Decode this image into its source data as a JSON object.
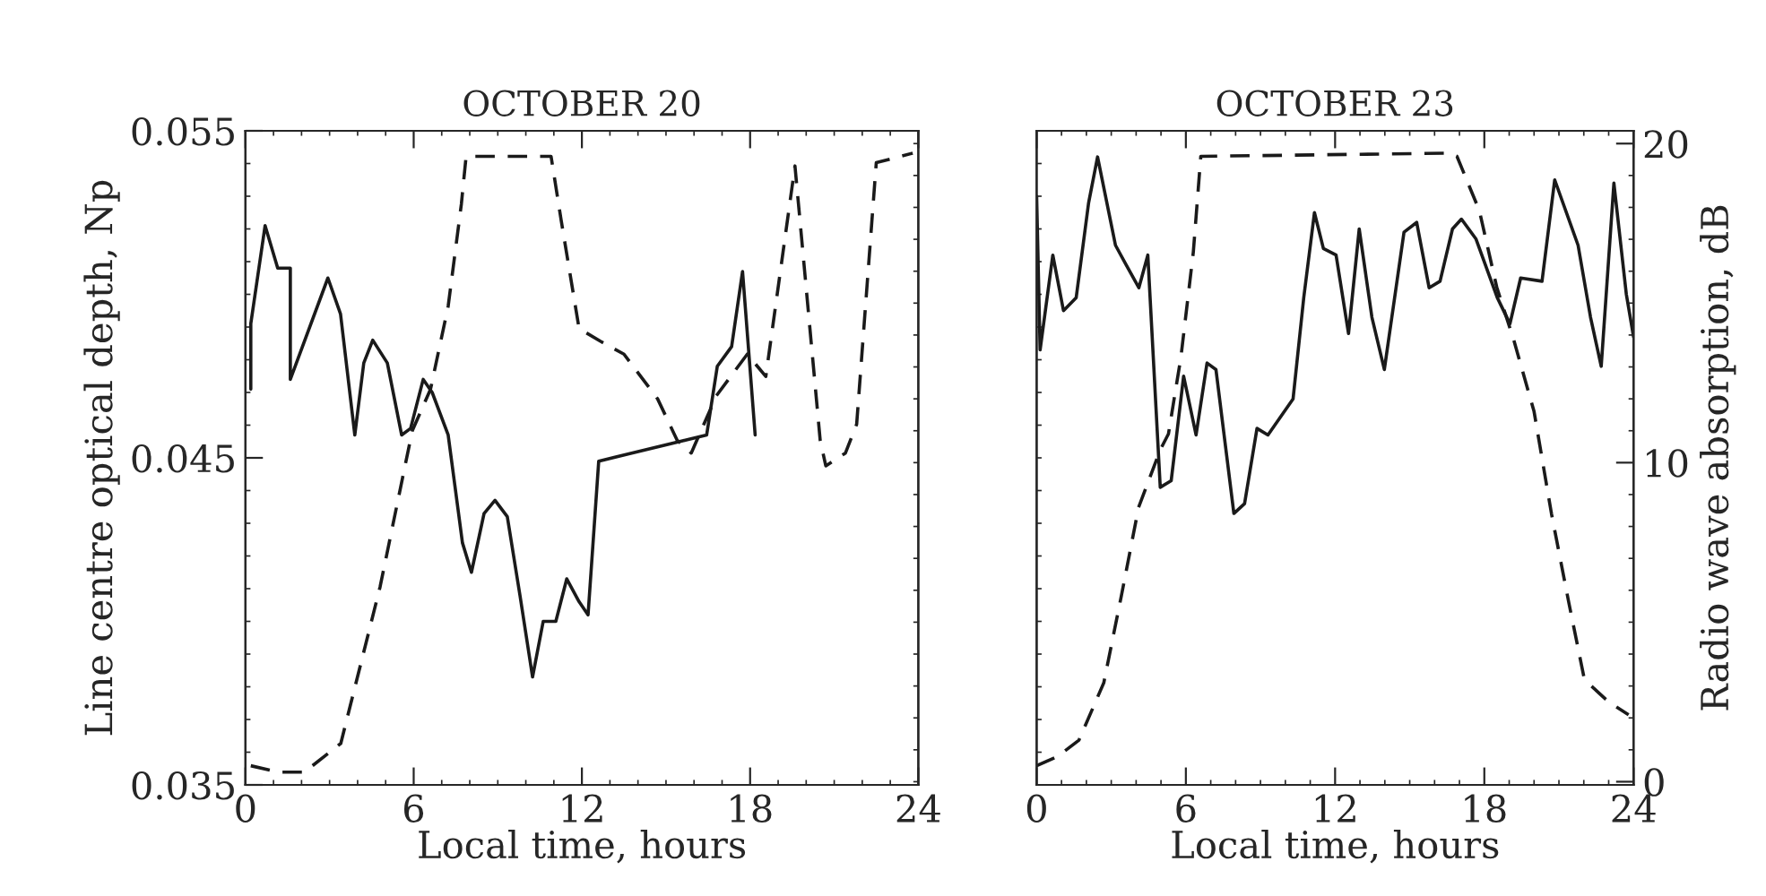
{
  "chart_data": [
    {
      "type": "line",
      "title": "OCTOBER 20",
      "xlabel": "Local time, hours",
      "ylabel": "Line centre optical depth, Np",
      "xlim": [
        0,
        24
      ],
      "xticks": [
        0,
        6,
        12,
        18,
        24
      ],
      "ylim": [
        0.035,
        0.055
      ],
      "yticks": [
        0.035,
        0.045,
        0.055
      ],
      "y2lim": [
        -0.1,
        20.4
      ],
      "tick_labels": [
        "x",
        "y"
      ],
      "grid": false,
      "legend": false,
      "series": [
        {
          "color": "#1a1a1a",
          "line_style": "solid",
          "x": [
            0.19,
            0.19,
            0.7,
            1.15,
            1.6,
            1.6,
            2.94,
            3.39,
            3.9,
            4.22,
            4.54,
            5.06,
            5.57,
            5.89,
            6.34,
            6.66,
            7.23,
            7.74,
            8.06,
            8.51,
            8.9,
            9.34,
            9.79,
            10.24,
            10.62,
            11.07,
            11.46,
            11.9,
            12.22,
            12.6,
            16.45,
            16.83,
            17.34,
            17.73,
            18.18
          ],
          "values": [
            0.0471,
            0.0491,
            0.0521,
            0.0508,
            0.0508,
            0.0474,
            0.0505,
            0.0494,
            0.0457,
            0.0479,
            0.0486,
            0.0479,
            0.0457,
            0.0459,
            0.0474,
            0.047,
            0.0457,
            0.0424,
            0.0415,
            0.0433,
            0.0437,
            0.0432,
            0.0408,
            0.0383,
            0.04,
            0.04,
            0.0413,
            0.0406,
            0.0402,
            0.0449,
            0.0457,
            0.0478,
            0.0484,
            0.0507,
            0.0457
          ]
        },
        {
          "color": "#1a1a1a",
          "line_style": "dashed",
          "axis": "y2",
          "x": [
            0.19,
            1.2,
            2.1,
            3.4,
            4.8,
            5.95,
            6.6,
            7.23,
            7.7,
            7.87,
            10.9,
            11.26,
            11.9,
            12.67,
            13.5,
            14.7,
            15.4,
            15.9,
            16.8,
            17.9,
            18.56,
            19.6,
            20.5,
            20.7,
            21.4,
            21.8,
            22.5,
            23.8
          ],
          "values": [
            0.5,
            0.3,
            0.3,
            1.2,
            6.1,
            11.0,
            12.3,
            14.9,
            18.1,
            19.6,
            19.6,
            17.6,
            14.2,
            13.8,
            13.4,
            12.0,
            10.7,
            10.3,
            12.1,
            13.4,
            12.7,
            19.3,
            10.7,
            9.9,
            10.3,
            11.2,
            19.4,
            19.7
          ]
        }
      ]
    },
    {
      "type": "line",
      "title": "OCTOBER 23",
      "xlabel": "Local time, hours",
      "y2label": "Radio wave absorption, dB",
      "xlim": [
        0,
        24
      ],
      "xticks": [
        0,
        6,
        12,
        18,
        24
      ],
      "ylim": [
        0.035,
        0.055
      ],
      "y2lim": [
        -0.1,
        20.4
      ],
      "y2ticks": [
        0,
        10,
        20
      ],
      "tick_labels": [
        "x",
        "y2"
      ],
      "grid": false,
      "legend": false,
      "series": [
        {
          "color": "#1a1a1a",
          "line_style": "solid",
          "x": [
            0.0,
            0.14,
            0.65,
            1.08,
            1.59,
            2.09,
            2.45,
            3.17,
            3.6,
            4.11,
            4.47,
            4.97,
            5.41,
            5.91,
            6.41,
            6.85,
            7.21,
            7.93,
            8.36,
            8.86,
            9.3,
            10.31,
            10.74,
            11.17,
            11.53,
            12.04,
            12.54,
            12.97,
            13.48,
            13.98,
            14.77,
            15.28,
            15.78,
            16.22,
            16.72,
            17.08,
            17.66,
            18.52,
            19.03,
            19.46,
            20.32,
            20.83,
            21.77,
            22.27,
            22.7,
            23.21,
            23.71,
            24.0
          ],
          "values": [
            0.053,
            0.0483,
            0.0512,
            0.0495,
            0.0499,
            0.0528,
            0.0542,
            0.0515,
            0.0509,
            0.0502,
            0.0512,
            0.0441,
            0.0443,
            0.0475,
            0.0457,
            0.0479,
            0.0477,
            0.0433,
            0.0436,
            0.0459,
            0.0457,
            0.0468,
            0.0499,
            0.0525,
            0.0514,
            0.0512,
            0.0488,
            0.052,
            0.0493,
            0.0477,
            0.0519,
            0.0522,
            0.0502,
            0.0504,
            0.052,
            0.0523,
            0.0517,
            0.0499,
            0.0491,
            0.0505,
            0.0504,
            0.0535,
            0.0515,
            0.0493,
            0.0478,
            0.0534,
            0.05,
            0.0487
          ]
        },
        {
          "color": "#1a1a1a",
          "line_style": "dashed",
          "axis": "y2",
          "x": [
            0.0,
            0.86,
            1.7,
            2.7,
            3.4,
            4.1,
            4.97,
            5.3,
            5.8,
            6.3,
            6.6,
            16.6,
            16.9,
            17.8,
            18.5,
            19.2,
            20.0,
            20.7,
            21.4,
            22.0,
            22.3,
            23.0,
            23.8
          ],
          "values": [
            0.5,
            0.8,
            1.3,
            3.1,
            5.8,
            8.6,
            10.4,
            10.9,
            13.3,
            16.6,
            19.6,
            19.7,
            19.6,
            17.9,
            15.5,
            13.8,
            11.6,
            8.4,
            5.6,
            3.3,
            3.0,
            2.5,
            2.1
          ]
        }
      ]
    }
  ]
}
